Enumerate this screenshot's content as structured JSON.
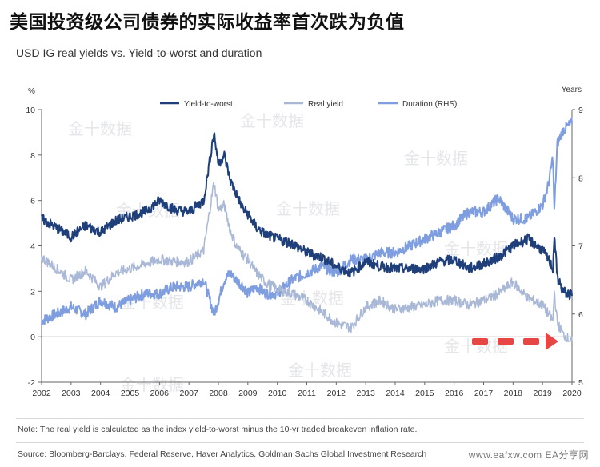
{
  "headline": "美国投资级公司债券的实际收益率首次跌为负值",
  "subtitle": "USD IG real yields vs. Yield-to-worst and duration",
  "note": "Note: The real yield is calculated as the index yield-to-worst minus the 10-yr traded breakeven inflation rate.",
  "source": "Source: Bloomberg-Barclays, Federal Reserve, Haver Analytics, Goldman Sachs Global Investment Research",
  "site": "www.eafxw.com  EA分享网",
  "watermark": "金十数据",
  "colors": {
    "ytw": "#1f3f7a",
    "real": "#a9b8d6",
    "duration": "#7f9ee0",
    "arrow": "#e84545"
  },
  "chart_data": {
    "type": "line",
    "title": "USD IG real yields vs. Yield-to-worst and duration",
    "left_axis": {
      "unit": "%",
      "ylim": [
        -2,
        10
      ],
      "ticks": [
        -2,
        0,
        2,
        4,
        6,
        8,
        10
      ]
    },
    "right_axis": {
      "unit": "Years",
      "ylim": [
        5,
        9
      ],
      "ticks": [
        5,
        6,
        7,
        8,
        9
      ]
    },
    "x_ticks": [
      "2002",
      "2003",
      "2004",
      "2005",
      "2006",
      "2007",
      "2008",
      "2009",
      "2010",
      "2011",
      "2012",
      "2013",
      "2014",
      "2015",
      "2016",
      "2017",
      "2018",
      "2019",
      "2020"
    ],
    "legend_position": "top",
    "grid": false,
    "series": [
      {
        "name": "Yield-to-worst",
        "axis": "left",
        "x": [
          2002.0,
          2002.5,
          2003.0,
          2003.5,
          2004.0,
          2004.5,
          2005.0,
          2005.5,
          2006.0,
          2006.5,
          2007.0,
          2007.5,
          2007.85,
          2008.0,
          2008.2,
          2008.4,
          2008.6,
          2008.85,
          2009.0,
          2009.3,
          2009.6,
          2010.0,
          2010.5,
          2011.0,
          2011.5,
          2012.0,
          2012.5,
          2013.0,
          2013.5,
          2014.0,
          2014.5,
          2015.0,
          2015.5,
          2016.0,
          2016.5,
          2017.0,
          2017.5,
          2018.0,
          2018.5,
          2019.0,
          2019.2,
          2019.35,
          2019.4,
          2019.5,
          2019.7,
          2020.0
        ],
        "y": [
          5.2,
          4.8,
          4.4,
          4.9,
          4.6,
          5.1,
          5.3,
          5.5,
          6.0,
          5.6,
          5.5,
          6.0,
          9.0,
          7.6,
          8.0,
          6.9,
          6.3,
          5.6,
          5.4,
          4.8,
          4.5,
          4.3,
          4.1,
          3.7,
          3.5,
          3.1,
          2.8,
          3.3,
          3.1,
          3.0,
          3.0,
          3.0,
          3.3,
          3.4,
          3.0,
          3.2,
          3.5,
          4.0,
          4.3,
          3.8,
          3.4,
          3.0,
          4.5,
          2.6,
          2.0,
          1.8
        ]
      },
      {
        "name": "Real yield",
        "axis": "left",
        "x": [
          2002.0,
          2002.5,
          2003.0,
          2003.5,
          2004.0,
          2004.5,
          2005.0,
          2005.5,
          2006.0,
          2006.5,
          2007.0,
          2007.5,
          2007.85,
          2008.0,
          2008.2,
          2008.4,
          2008.6,
          2008.85,
          2009.0,
          2009.3,
          2009.6,
          2010.0,
          2010.5,
          2011.0,
          2011.5,
          2012.0,
          2012.5,
          2013.0,
          2013.5,
          2014.0,
          2014.5,
          2015.0,
          2015.5,
          2016.0,
          2016.5,
          2017.0,
          2017.5,
          2018.0,
          2018.5,
          2019.0,
          2019.2,
          2019.35,
          2019.4,
          2019.5,
          2019.7,
          2020.0
        ],
        "y": [
          3.5,
          3.0,
          2.5,
          2.9,
          2.2,
          2.8,
          3.0,
          3.2,
          3.4,
          3.3,
          3.3,
          3.8,
          6.8,
          5.6,
          5.8,
          4.7,
          4.0,
          3.6,
          3.4,
          2.8,
          2.4,
          2.1,
          1.9,
          1.6,
          1.1,
          0.6,
          0.4,
          1.3,
          1.6,
          1.2,
          1.3,
          1.4,
          1.6,
          1.6,
          1.4,
          1.6,
          1.9,
          2.4,
          1.7,
          1.4,
          1.0,
          0.7,
          2.0,
          0.6,
          0.1,
          -0.2
        ]
      },
      {
        "name": "Duration (RHS)",
        "axis": "right",
        "x": [
          2002.0,
          2002.5,
          2003.0,
          2003.5,
          2004.0,
          2004.5,
          2005.0,
          2005.5,
          2006.0,
          2006.5,
          2007.0,
          2007.5,
          2007.85,
          2008.0,
          2008.2,
          2008.4,
          2008.6,
          2008.85,
          2009.0,
          2009.3,
          2009.6,
          2010.0,
          2010.5,
          2011.0,
          2011.5,
          2012.0,
          2012.5,
          2013.0,
          2013.5,
          2014.0,
          2014.5,
          2015.0,
          2015.5,
          2016.0,
          2016.5,
          2017.0,
          2017.5,
          2018.0,
          2018.5,
          2019.0,
          2019.2,
          2019.35,
          2019.4,
          2019.5,
          2019.7,
          2020.0
        ],
        "y": [
          5.9,
          6.0,
          6.1,
          6.0,
          6.2,
          6.1,
          6.2,
          6.3,
          6.3,
          6.4,
          6.4,
          6.5,
          6.0,
          6.2,
          6.5,
          6.6,
          6.5,
          6.4,
          6.3,
          6.4,
          6.3,
          6.3,
          6.5,
          6.6,
          6.7,
          6.6,
          6.8,
          6.8,
          6.9,
          6.9,
          7.0,
          7.1,
          7.2,
          7.3,
          7.5,
          7.5,
          7.7,
          7.4,
          7.4,
          7.6,
          7.9,
          8.3,
          7.5,
          8.5,
          8.7,
          8.8
        ]
      }
    ]
  }
}
